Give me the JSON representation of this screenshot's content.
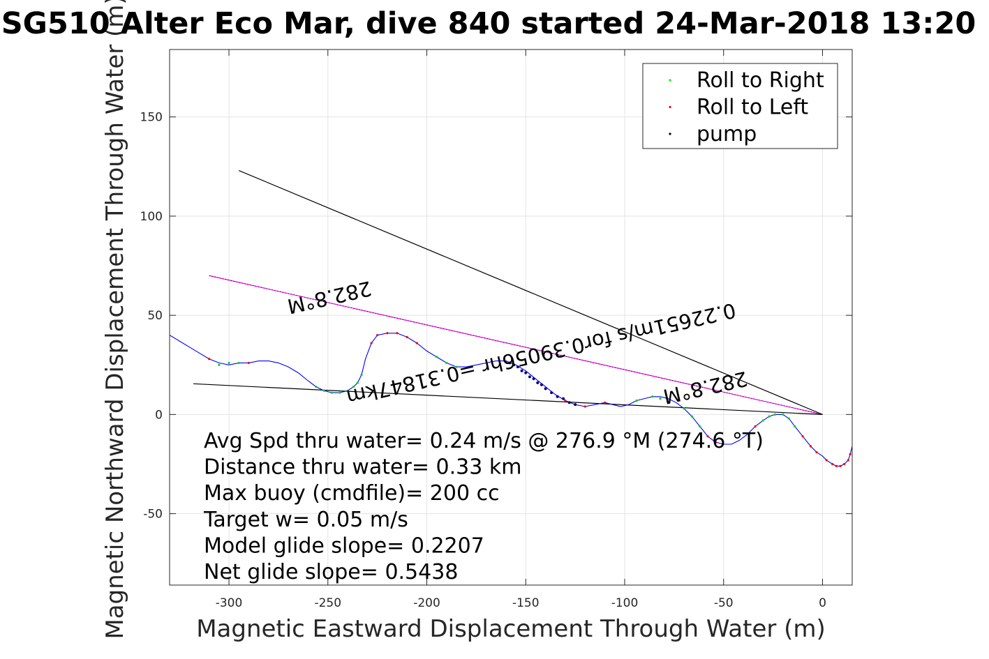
{
  "chart_data": {
    "type": "line",
    "title": "SG510 Alter Eco Mar, dive 840 started 24-Mar-2018 13:20",
    "xlabel": "Magnetic Eastward Displacement Through Water (m)",
    "ylabel": "Magnetic Northward Displacement Through Water (m)",
    "xlim": [
      -330,
      15
    ],
    "ylim": [
      -86,
      184
    ],
    "xticks": [
      -300,
      -250,
      -200,
      -150,
      -100,
      -50,
      0
    ],
    "yticks": [
      -50,
      0,
      50,
      100,
      150
    ],
    "xtick_labels": [
      "-300",
      "-250",
      "-200",
      "-150",
      "-100",
      "-50",
      "0"
    ],
    "ytick_labels": [
      "-50",
      "0",
      "50",
      "100",
      "150"
    ],
    "grid": true,
    "legend_position": "top-right",
    "legend": [
      {
        "label": "Roll to Right",
        "color": "#00ff00"
      },
      {
        "label": "Roll to Left",
        "color": "#ff0000"
      },
      {
        "label": "pump",
        "color": "#000000"
      }
    ],
    "track": {
      "color": "#0000ff",
      "x": [
        15,
        14,
        13,
        11,
        9,
        7,
        5,
        2,
        0,
        -3,
        -6,
        -10,
        -14,
        -17,
        -20,
        -24,
        -27,
        -30,
        -34,
        -38,
        -42,
        -46,
        -50,
        -54,
        -58,
        -62,
        -66,
        -70,
        -74,
        -78,
        -82,
        -86,
        -90,
        -94,
        -98,
        -102,
        -106,
        -110,
        -115,
        -120,
        -125,
        -130,
        -135,
        -140,
        -145,
        -150,
        -155,
        -160,
        -165,
        -170,
        -175,
        -180,
        -185,
        -190,
        -195,
        -200,
        -205,
        -210,
        -215,
        -220,
        -225,
        -228,
        -231,
        -233,
        -235,
        -237,
        -240,
        -244,
        -248,
        -252,
        -256,
        -260,
        -265,
        -270,
        -275,
        -280,
        -285,
        -290,
        -295,
        -300,
        -305,
        -310,
        -315,
        -320,
        -325,
        -330
      ],
      "y": [
        -16,
        -20,
        -23,
        -25,
        -26,
        -26,
        -25,
        -23,
        -21,
        -19,
        -16,
        -11,
        -6,
        -2,
        0,
        0,
        -1,
        -3,
        -6,
        -10,
        -13,
        -15,
        -15,
        -14,
        -11,
        -6,
        -1,
        3,
        6,
        8,
        9,
        9,
        8,
        7,
        5,
        4,
        5,
        6,
        5,
        4,
        5,
        7,
        10,
        14,
        18,
        22,
        25,
        27,
        27,
        26,
        25,
        24,
        24,
        26,
        29,
        32,
        36,
        39,
        41,
        41,
        40,
        36,
        28,
        20,
        16,
        14,
        12,
        11,
        11,
        12,
        14,
        17,
        21,
        24,
        26,
        27,
        27,
        26,
        26,
        25,
        26,
        28,
        31,
        34,
        37,
        40
      ]
    },
    "roll_right_points": {
      "x": [
        -14,
        -17,
        -20,
        -24,
        -27,
        -30,
        -62,
        -66,
        -70,
        -82,
        -86,
        -94,
        -185,
        -190,
        -195,
        -233,
        -235,
        -237,
        -240,
        -244,
        -248,
        -252,
        -256,
        -295,
        -300,
        -305
      ],
      "y": [
        -6,
        -2,
        0,
        0,
        -1,
        -3,
        -6,
        -1,
        3,
        8,
        9,
        7,
        24,
        26,
        29,
        20,
        16,
        14,
        12,
        11,
        11,
        12,
        14,
        26,
        26,
        25
      ]
    },
    "roll_left_points": {
      "x": [
        14,
        13,
        11,
        9,
        7,
        5,
        2,
        -3,
        -6,
        -10,
        -34,
        -54,
        -58,
        -110,
        -120,
        -130,
        -205,
        -210,
        -215,
        -220,
        -225,
        -228,
        -290,
        -310
      ],
      "y": [
        -20,
        -23,
        -25,
        -26,
        -26,
        -25,
        -23,
        -19,
        -16,
        -11,
        -6,
        -14,
        -11,
        6,
        4,
        7,
        36,
        39,
        41,
        41,
        40,
        36,
        26,
        28
      ]
    },
    "pump_points": {
      "x": [
        -125,
        -128,
        -131,
        -134,
        -137,
        -140,
        -142,
        -144,
        -146,
        -148,
        -150,
        -152,
        -154,
        -156,
        -158
      ],
      "y": [
        5,
        6,
        8,
        9,
        11,
        13,
        15,
        16,
        18,
        19,
        21,
        22,
        24,
        25,
        26
      ]
    },
    "lines": [
      {
        "name": "heading",
        "color": "#ff00ff",
        "x": [
          0,
          -310
        ],
        "y": [
          0,
          70
        ]
      },
      {
        "name": "upper-bound",
        "color": "#000000",
        "x": [
          0,
          -295
        ],
        "y": [
          0,
          123
        ]
      },
      {
        "name": "lower-bound",
        "color": "#000000",
        "x": [
          0,
          -318
        ],
        "y": [
          0,
          15.5
        ]
      }
    ],
    "annotations": [
      {
        "text": "282.8°M",
        "x": -250,
        "y": 62.5,
        "angle": 167.2
      },
      {
        "text": "282.8°M",
        "x": -60,
        "y": 17,
        "angle": 167.2
      },
      {
        "text": "0.22651m/s for0.39056hr =0.31847km",
        "x": -143,
        "y": 34,
        "angle": 167.2
      }
    ],
    "stats": [
      "Avg Spd thru water=  0.24 m/s @ 276.9 °M (274.6 °T)",
      "Distance thru water=  0.33 km",
      "Max buoy (cmdfile)= 200 cc",
      "Target w= 0.05 m/s",
      "Model glide slope= 0.2207",
      "Net glide slope= 0.5438"
    ]
  }
}
